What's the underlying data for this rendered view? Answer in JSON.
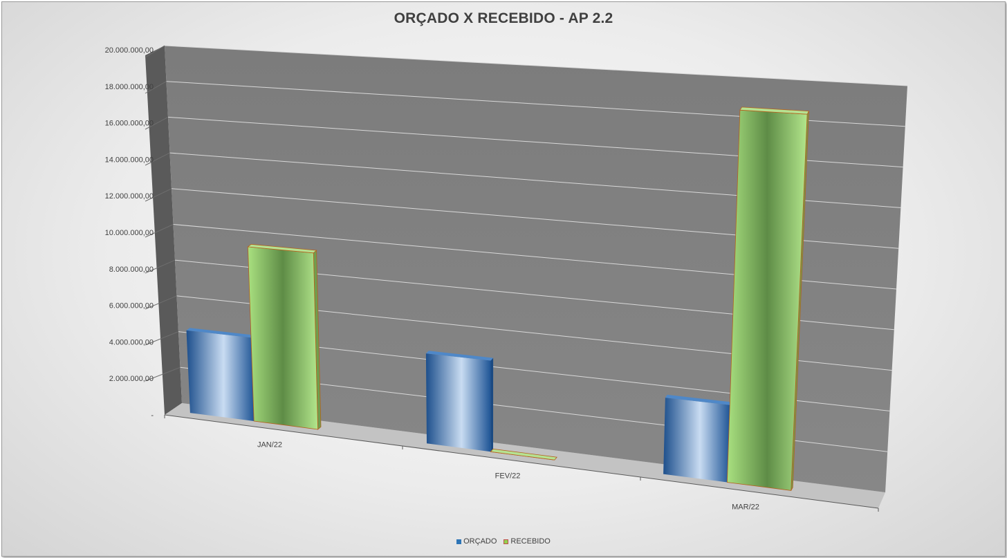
{
  "chart_data": {
    "type": "bar",
    "title": "ORÇADO X RECEBIDO - AP 2.2",
    "categories": [
      "JAN/22",
      "FEV/22",
      "MAR/22"
    ],
    "series": [
      {
        "name": "ORÇADO",
        "values": [
          4600000,
          4800000,
          3900000
        ]
      },
      {
        "name": "RECEBIDO",
        "values": [
          9600000,
          0,
          18800000
        ]
      }
    ],
    "ylim": [
      0,
      20000000
    ],
    "yticks": [
      "-",
      "2.000.000,00",
      "4.000.000,00",
      "6.000.000,00",
      "8.000.000,00",
      "10.000.000,00",
      "12.000.000,00",
      "14.000.000,00",
      "16.000.000,00",
      "18.000.000,00",
      "20.000.000,00"
    ],
    "grid": true,
    "legend_position": "bottom",
    "colors": {
      "orcado": "#2e75b6",
      "recebido": "#92d050",
      "wall": "#7f7f7f",
      "side_wall": "#595959",
      "floor": "#bfbfbf"
    }
  }
}
